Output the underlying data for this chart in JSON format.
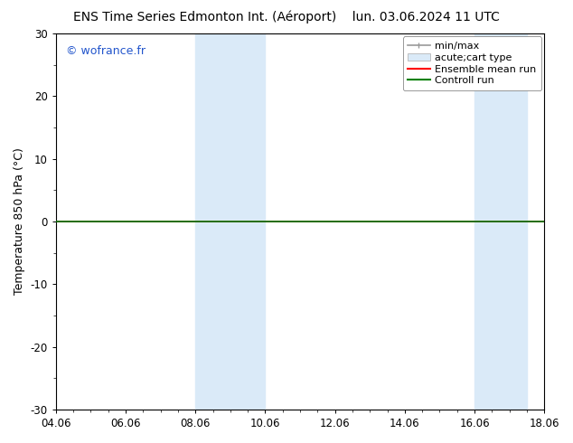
{
  "title_left": "ENS Time Series Edmonton Int. (Aéroport)",
  "title_right": "lun. 03.06.2024 11 UTC",
  "ylabel": "Temperature 850 hPa (°C)",
  "xlabel_ticks": [
    "04.06",
    "06.06",
    "08.06",
    "10.06",
    "12.06",
    "14.06",
    "16.06",
    "18.06"
  ],
  "xtick_positions": [
    0,
    2,
    4,
    6,
    8,
    10,
    12,
    14
  ],
  "xlim": [
    0,
    14
  ],
  "ylim": [
    -30,
    30
  ],
  "yticks": [
    -30,
    -20,
    -10,
    0,
    10,
    20,
    30
  ],
  "background_color": "#ffffff",
  "plot_bg_color": "#ffffff",
  "watermark": "© wofrance.fr",
  "watermark_color": "#2255cc",
  "shaded_bands": [
    {
      "x_start": 4.0,
      "x_end": 6.0
    },
    {
      "x_start": 12.0,
      "x_end": 13.5
    }
  ],
  "shaded_color": "#daeaf8",
  "control_run_color": "#008000",
  "ensemble_mean_color": "#ff0000",
  "minmax_color": "#999999",
  "tick_label_fontsize": 8.5,
  "axis_label_fontsize": 9,
  "title_fontsize": 10,
  "watermark_fontsize": 9,
  "legend_fontsize": 8
}
